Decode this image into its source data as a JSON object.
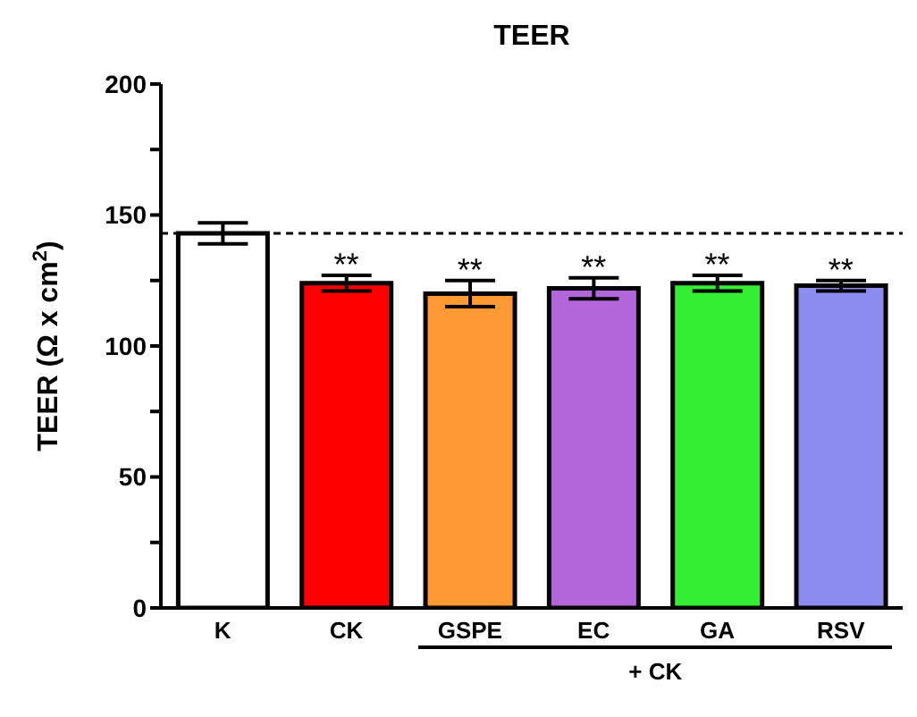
{
  "chart_data": {
    "type": "bar",
    "title": "TEER",
    "ylabel": "TEER (Ω x cm$^{2}$)",
    "categories": [
      "K",
      "CK",
      "GSPE",
      "EC",
      "GA",
      "RSV"
    ],
    "values": [
      143,
      124,
      120,
      122,
      124,
      123
    ],
    "errors": [
      4,
      3,
      5,
      4,
      3,
      2
    ],
    "colors": [
      "#ffffff",
      "#ff0000",
      "#ff9933",
      "#b266d9",
      "#33ee33",
      "#8c8cee"
    ],
    "ylim": [
      0,
      200
    ],
    "yticks": [
      0,
      {
        "value": 25,
        "label": null
      },
      50,
      {
        "value": 75,
        "label": null
      },
      100,
      {
        "value": 125,
        "label": null
      },
      150,
      {
        "value": 175,
        "label": null
      },
      200
    ],
    "ref_lines": [
      {
        "axis": "y",
        "value": 143,
        "line_style": "dashed",
        "color": "#000000"
      }
    ],
    "annotations": [
      {
        "text": "**",
        "x": "CK",
        "y": 127
      },
      {
        "text": "**",
        "x": "GSPE",
        "y": 125
      },
      {
        "text": "**",
        "x": "EC",
        "y": 126
      },
      {
        "text": "**",
        "x": "GA",
        "y": 127
      },
      {
        "text": "**",
        "x": "RSV",
        "y": 125
      },
      "+ CK"
    ]
  }
}
